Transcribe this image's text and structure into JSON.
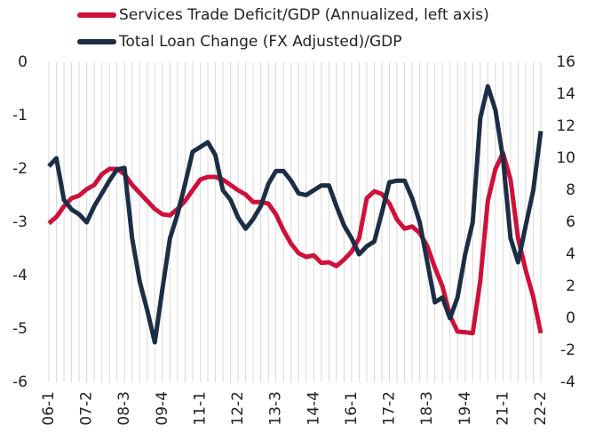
{
  "chart_data": {
    "type": "line",
    "categories": [
      "06-1",
      null,
      null,
      null,
      null,
      "07-2",
      null,
      null,
      null,
      null,
      "08-3",
      null,
      null,
      null,
      null,
      "09-4",
      null,
      null,
      null,
      null,
      "11-1",
      null,
      null,
      null,
      null,
      "12-2",
      null,
      null,
      null,
      null,
      "13-3",
      null,
      null,
      null,
      null,
      "14-4",
      null,
      null,
      null,
      null,
      "16-1",
      null,
      null,
      null,
      null,
      "17-2",
      null,
      null,
      null,
      null,
      "18-3",
      null,
      null,
      null,
      null,
      "19-4",
      null,
      null,
      null,
      null,
      "21-1",
      null,
      null,
      null,
      null,
      "22-2"
    ],
    "series": [
      {
        "name": "Services Trade Deficit/GDP (Annualized, left axis)",
        "color": "#d0103a",
        "axis": "y",
        "values": [
          -3.02,
          -2.9,
          -2.7,
          -2.55,
          -2.5,
          -2.38,
          -2.3,
          -2.1,
          -2.0,
          -2.0,
          -2.1,
          -2.3,
          -2.45,
          -2.6,
          -2.75,
          -2.85,
          -2.87,
          -2.75,
          -2.6,
          -2.4,
          -2.2,
          -2.15,
          -2.15,
          -2.2,
          -2.3,
          -2.4,
          -2.48,
          -2.62,
          -2.62,
          -2.65,
          -2.85,
          -3.15,
          -3.4,
          -3.58,
          -3.65,
          -3.62,
          -3.76,
          -3.75,
          -3.82,
          -3.7,
          -3.55,
          -3.3,
          -2.55,
          -2.42,
          -2.47,
          -2.65,
          -2.95,
          -3.12,
          -3.08,
          -3.2,
          -3.45,
          -3.85,
          -4.2,
          -4.75,
          -5.05,
          -5.06,
          -5.08,
          -4.1,
          -2.6,
          -2.0,
          -1.7,
          -2.2,
          -3.3,
          -3.9,
          -4.4,
          -5.08
        ]
      },
      {
        "name": "Total Loan Change (FX Adjusted)/GDP",
        "color": "#1c2e45",
        "axis": "y2",
        "values": [
          9.5,
          10.0,
          7.4,
          6.8,
          6.5,
          6.0,
          7.0,
          7.8,
          8.6,
          9.3,
          9.4,
          5.0,
          2.3,
          0.5,
          -1.5,
          1.8,
          5.0,
          6.5,
          8.4,
          10.4,
          10.7,
          11.0,
          10.2,
          8.0,
          7.4,
          6.3,
          5.6,
          6.2,
          7.0,
          8.4,
          9.2,
          9.2,
          8.6,
          7.8,
          7.7,
          8.0,
          8.3,
          8.3,
          7.0,
          5.8,
          5.0,
          4.0,
          4.5,
          4.8,
          6.6,
          8.5,
          8.6,
          8.6,
          7.5,
          6.0,
          3.5,
          1.0,
          1.3,
          0.0,
          1.3,
          4.0,
          6.0,
          12.5,
          14.5,
          13.0,
          10.0,
          5.0,
          3.5,
          5.8,
          8.0,
          11.7
        ]
      }
    ],
    "ylim": [
      -6,
      0
    ],
    "yticks": [
      0,
      -1,
      -2,
      -3,
      -4,
      -5,
      -6
    ],
    "y2lim": [
      -4,
      16
    ],
    "y2ticks": [
      16,
      14,
      12,
      10,
      8,
      6,
      4,
      2,
      0,
      -2,
      -4
    ],
    "grid": "x",
    "legend": "top"
  }
}
